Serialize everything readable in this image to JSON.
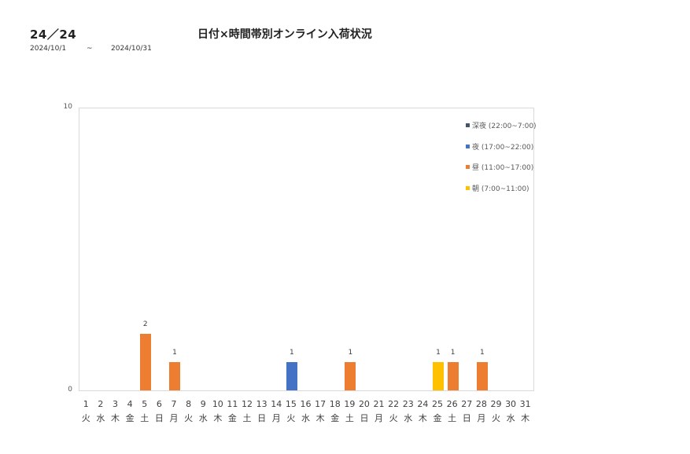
{
  "header": {
    "count": "24／24",
    "title": "日付×時間帯別オンライン入荷状況",
    "date_from": "2024/10/1",
    "tilde": "~",
    "date_to": "2024/10/31"
  },
  "chart_data": {
    "type": "bar",
    "stacked": true,
    "title": "日付×時間帯別オンライン入荷状況",
    "xlabel": "",
    "ylabel": "",
    "ylim": [
      0,
      10
    ],
    "yticks": [
      "0",
      "10"
    ],
    "grid": false,
    "legend_position": "right-inside",
    "categories": [
      "1",
      "2",
      "3",
      "4",
      "5",
      "6",
      "7",
      "8",
      "9",
      "10",
      "11",
      "12",
      "13",
      "14",
      "15",
      "16",
      "17",
      "18",
      "19",
      "20",
      "21",
      "22",
      "23",
      "24",
      "25",
      "26",
      "27",
      "28",
      "29",
      "30",
      "31"
    ],
    "weekdays": [
      "火",
      "水",
      "木",
      "金",
      "土",
      "日",
      "月",
      "火",
      "水",
      "木",
      "金",
      "土",
      "日",
      "月",
      "火",
      "水",
      "木",
      "金",
      "土",
      "日",
      "月",
      "火",
      "水",
      "木",
      "金",
      "土",
      "日",
      "月",
      "火",
      "水",
      "木"
    ],
    "series": [
      {
        "name": "深夜 (22:00~7:00)",
        "color": "#44546a",
        "values": [
          0,
          0,
          0,
          0,
          0,
          0,
          0,
          0,
          0,
          0,
          0,
          0,
          0,
          0,
          0,
          0,
          0,
          0,
          0,
          0,
          0,
          0,
          0,
          0,
          0,
          0,
          0,
          0,
          0,
          0,
          0
        ]
      },
      {
        "name": "夜 (17:00~22:00)",
        "color": "#4472c4",
        "values": [
          0,
          0,
          0,
          0,
          0,
          0,
          0,
          0,
          0,
          0,
          0,
          0,
          0,
          0,
          1,
          0,
          0,
          0,
          0,
          0,
          0,
          0,
          0,
          0,
          0,
          0,
          0,
          0,
          0,
          0,
          0
        ]
      },
      {
        "name": "昼 (11:00~17:00)",
        "color": "#ed7d31",
        "values": [
          0,
          0,
          0,
          0,
          2,
          0,
          1,
          0,
          0,
          0,
          0,
          0,
          0,
          0,
          0,
          0,
          0,
          0,
          1,
          0,
          0,
          0,
          0,
          0,
          0,
          1,
          0,
          1,
          0,
          0,
          0
        ]
      },
      {
        "name": "朝 (7:00~11:00)",
        "color": "#ffc000",
        "values": [
          0,
          0,
          0,
          0,
          0,
          0,
          0,
          0,
          0,
          0,
          0,
          0,
          0,
          0,
          0,
          0,
          0,
          0,
          0,
          0,
          0,
          0,
          0,
          0,
          1,
          0,
          0,
          0,
          0,
          0,
          0
        ]
      }
    ],
    "totals": [
      0,
      0,
      0,
      0,
      2,
      0,
      1,
      0,
      0,
      0,
      0,
      0,
      0,
      0,
      1,
      0,
      0,
      0,
      1,
      0,
      0,
      0,
      0,
      0,
      1,
      1,
      0,
      1,
      0,
      0,
      0
    ]
  }
}
